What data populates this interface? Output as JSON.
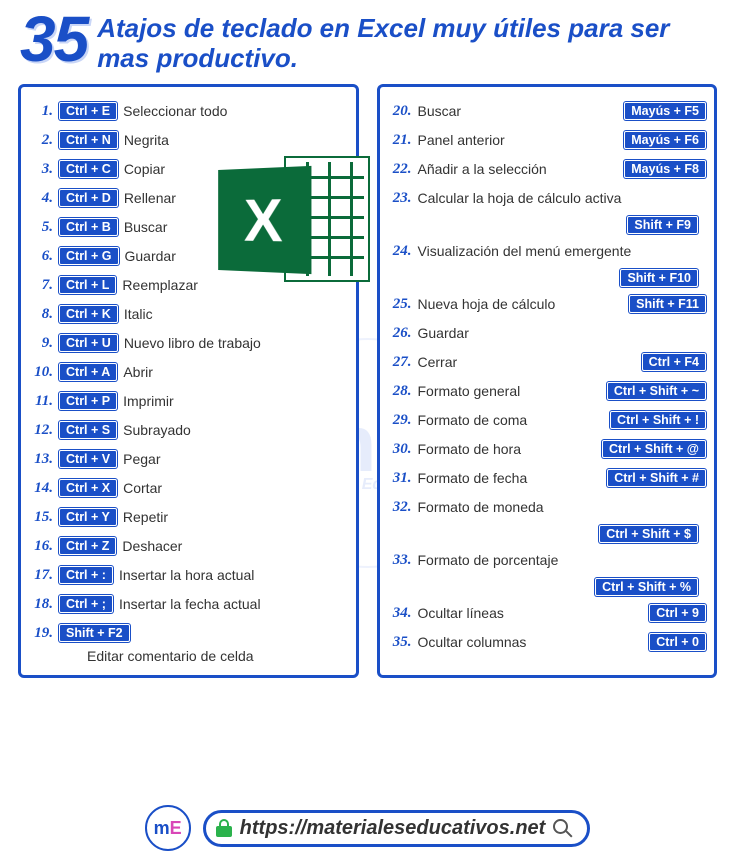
{
  "header": {
    "number": "35",
    "title": "Atajos de teclado en Excel muy útiles para ser mas productivo."
  },
  "colors": {
    "accent": "#1a4fc7",
    "key_bg": "#1a4fc7",
    "key_text": "#ffffff",
    "border": "#1a4fc7",
    "text": "#333333",
    "excel_green": "#0b6b3a",
    "lock_green": "#2bb24c"
  },
  "left": [
    {
      "n": "1.",
      "key": "Ctrl + E",
      "label": "Seleccionar todo"
    },
    {
      "n": "2.",
      "key": "Ctrl + N",
      "label": "Negrita"
    },
    {
      "n": "3.",
      "key": "Ctrl + C",
      "label": "Copiar"
    },
    {
      "n": "4.",
      "key": "Ctrl + D",
      "label": "Rellenar"
    },
    {
      "n": "5.",
      "key": "Ctrl + B",
      "label": "Buscar"
    },
    {
      "n": "6.",
      "key": "Ctrl + G",
      "label": "Guardar"
    },
    {
      "n": "7.",
      "key": "Ctrl + L",
      "label": "Reemplazar"
    },
    {
      "n": "8.",
      "key": "Ctrl + K",
      "label": "Italic"
    },
    {
      "n": "9.",
      "key": "Ctrl + U",
      "label": "Nuevo libro de trabajo"
    },
    {
      "n": "10.",
      "key": "Ctrl + A",
      "label": "Abrir"
    },
    {
      "n": "11.",
      "key": "Ctrl + P",
      "label": "Imprimir"
    },
    {
      "n": "12.",
      "key": "Ctrl + S",
      "label": "Subrayado"
    },
    {
      "n": "13.",
      "key": "Ctrl + V",
      "label": "Pegar"
    },
    {
      "n": "14.",
      "key": "Ctrl + X",
      "label": "Cortar"
    },
    {
      "n": "15.",
      "key": "Ctrl + Y",
      "label": "Repetir"
    },
    {
      "n": "16.",
      "key": "Ctrl + Z",
      "label": "Deshacer"
    },
    {
      "n": "17.",
      "key": "Ctrl + :",
      "label": "Insertar la hora actual"
    },
    {
      "n": "18.",
      "key": "Ctrl + ;",
      "label": "Insertar la fecha actual"
    },
    {
      "n": "19.",
      "key": "Shift + F2",
      "label": ""
    }
  ],
  "left_tail_label": "Editar comentario de celda",
  "right": [
    {
      "n": "20.",
      "label": "Buscar",
      "key": "Mayús + F5",
      "layout": "lr"
    },
    {
      "n": "21.",
      "label": "Panel anterior",
      "key": "Mayús + F6",
      "layout": "lr"
    },
    {
      "n": "22.",
      "label": "Añadir a la selección",
      "key": "Mayús + F8",
      "layout": "lr"
    },
    {
      "n": "23.",
      "label": "Calcular la hoja de cálculo activa",
      "key": "Shift + F9",
      "layout": "below"
    },
    {
      "n": "24.",
      "label": "Visualización del menú emergente",
      "key": "Shift + F10",
      "layout": "below"
    },
    {
      "n": "25.",
      "label": "Nueva hoja de cálculo",
      "key": "Shift + F11",
      "layout": "lr"
    },
    {
      "n": "26.",
      "label": "Guardar",
      "key": "",
      "layout": "lr"
    },
    {
      "n": "27.",
      "label": "Cerrar",
      "key": "Ctrl + F4",
      "layout": "lr"
    },
    {
      "n": "28.",
      "label": "Formato general",
      "key": "Ctrl + Shift + ~",
      "layout": "lr"
    },
    {
      "n": "29.",
      "label": "Formato de coma",
      "key": "Ctrl + Shift + !",
      "layout": "lr"
    },
    {
      "n": "30.",
      "label": "Formato de hora",
      "key": "Ctrl + Shift + @",
      "layout": "lr"
    },
    {
      "n": "31.",
      "label": "Formato de fecha",
      "key": "Ctrl + Shift + #",
      "layout": "lr"
    },
    {
      "n": "32.",
      "label": "Formato de moneda",
      "key": "Ctrl + Shift + $",
      "layout": "below"
    },
    {
      "n": "33.",
      "label": "Formato de porcentaje",
      "key": "Ctrl + Shift + %",
      "layout": "below"
    },
    {
      "n": "34.",
      "label": "Ocultar líneas",
      "key": "Ctrl + 9",
      "layout": "lr"
    },
    {
      "n": "35.",
      "label": "Ocultar columnas",
      "key": "Ctrl + 0",
      "layout": "lr"
    }
  ],
  "watermark": {
    "letters": "mE",
    "text": "Material Educativo"
  },
  "footer": {
    "logo_letters": "mE",
    "logo_text": "Material Educativo",
    "url": "https://materialeseducativos.net"
  }
}
